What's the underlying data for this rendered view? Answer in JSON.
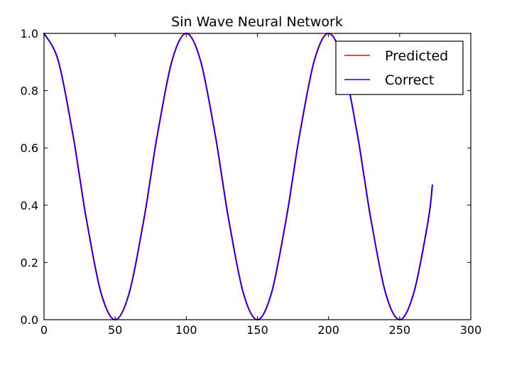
{
  "chart_data": {
    "type": "line",
    "title": "Sin Wave Neural Network",
    "xlabel": "",
    "ylabel": "",
    "xlim": [
      0,
      300
    ],
    "ylim": [
      0,
      1.0
    ],
    "x_ticks": [
      0,
      50,
      100,
      150,
      200,
      250,
      300
    ],
    "y_ticks": [
      0.0,
      0.2,
      0.4,
      0.6,
      0.8,
      1.0
    ],
    "x_tick_labels": [
      "0",
      "50",
      "100",
      "150",
      "200",
      "250",
      "300"
    ],
    "y_tick_labels": [
      "0.0",
      "0.2",
      "0.4",
      "0.6",
      "0.8",
      "1.0"
    ],
    "grid": false,
    "legend_position": "top-right",
    "series": [
      {
        "name": "Predicted",
        "color": "#ff0000",
        "x": [
          0,
          10,
          20,
          25,
          30,
          40,
          50,
          60,
          70,
          75,
          80,
          90,
          100,
          110,
          120,
          125,
          130,
          140,
          150,
          160,
          170,
          175,
          180,
          190,
          200,
          210,
          220,
          225,
          230,
          240,
          250,
          260,
          270,
          273
        ],
        "y": [
          1.0,
          0.905,
          0.655,
          0.5,
          0.345,
          0.095,
          0.0,
          0.095,
          0.345,
          0.5,
          0.655,
          0.905,
          1.0,
          0.905,
          0.655,
          0.5,
          0.345,
          0.095,
          0.0,
          0.095,
          0.345,
          0.5,
          0.655,
          0.905,
          1.0,
          0.905,
          0.655,
          0.5,
          0.345,
          0.095,
          0.0,
          0.095,
          0.345,
          0.47
        ]
      },
      {
        "name": "Correct",
        "color": "#0000ff",
        "x": [
          0,
          10,
          20,
          25,
          30,
          40,
          50,
          60,
          70,
          75,
          80,
          90,
          100,
          110,
          120,
          125,
          130,
          140,
          150,
          160,
          170,
          175,
          180,
          190,
          200,
          210,
          220,
          225,
          230,
          240,
          250,
          260,
          270,
          273
        ],
        "y": [
          1.0,
          0.905,
          0.655,
          0.5,
          0.345,
          0.095,
          0.0,
          0.095,
          0.345,
          0.5,
          0.655,
          0.905,
          1.0,
          0.905,
          0.655,
          0.5,
          0.345,
          0.095,
          0.0,
          0.095,
          0.345,
          0.5,
          0.655,
          0.905,
          1.0,
          0.905,
          0.655,
          0.5,
          0.345,
          0.095,
          0.0,
          0.095,
          0.345,
          0.47
        ]
      }
    ]
  }
}
